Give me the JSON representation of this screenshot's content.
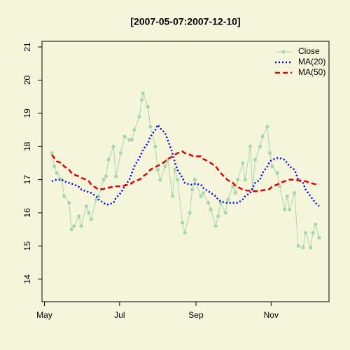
{
  "chart_data": {
    "type": "line",
    "title": "[2007-05-07:2007-12-10]",
    "x": [
      "2007-05-07",
      "2007-05-09",
      "2007-05-11",
      "2007-05-15",
      "2007-05-17",
      "2007-05-21",
      "2007-05-23",
      "2007-05-25",
      "2007-05-29",
      "2007-05-31",
      "2007-06-04",
      "2007-06-06",
      "2007-06-08",
      "2007-06-12",
      "2007-06-14",
      "2007-06-18",
      "2007-06-20",
      "2007-06-22",
      "2007-06-26",
      "2007-06-28",
      "2007-07-02",
      "2007-07-05",
      "2007-07-09",
      "2007-07-11",
      "2007-07-13",
      "2007-07-17",
      "2007-07-19",
      "2007-07-20",
      "2007-07-24",
      "2007-07-26",
      "2007-07-30",
      "2007-08-01",
      "2007-08-03",
      "2007-08-07",
      "2007-08-09",
      "2007-08-13",
      "2007-08-15",
      "2007-08-17",
      "2007-08-21",
      "2007-08-23",
      "2007-08-27",
      "2007-08-29",
      "2007-08-31",
      "2007-09-05",
      "2007-09-07",
      "2007-09-11",
      "2007-09-13",
      "2007-09-17",
      "2007-09-19",
      "2007-09-21",
      "2007-09-25",
      "2007-09-27",
      "2007-10-01",
      "2007-10-03",
      "2007-10-05",
      "2007-10-09",
      "2007-10-11",
      "2007-10-15",
      "2007-10-17",
      "2007-10-19",
      "2007-10-23",
      "2007-10-25",
      "2007-10-29",
      "2007-10-31",
      "2007-11-02",
      "2007-11-06",
      "2007-11-08",
      "2007-11-12",
      "2007-11-14",
      "2007-11-16",
      "2007-11-20",
      "2007-11-23",
      "2007-11-27",
      "2007-11-29",
      "2007-12-03",
      "2007-12-05",
      "2007-12-07",
      "2007-12-10"
    ],
    "series": [
      {
        "name": "Close",
        "color": "#a8d8a8",
        "line_style": "solid",
        "markers": true,
        "values": [
          17.8,
          17.4,
          17.2,
          17.0,
          16.5,
          16.3,
          15.5,
          15.6,
          15.9,
          15.6,
          16.2,
          16.0,
          15.8,
          16.4,
          16.5,
          17.0,
          17.1,
          17.6,
          18.0,
          17.1,
          17.8,
          18.3,
          18.2,
          18.2,
          18.5,
          18.9,
          19.4,
          19.6,
          19.2,
          18.6,
          18.0,
          17.3,
          17.0,
          17.4,
          17.6,
          16.5,
          17.3,
          17.0,
          15.7,
          15.4,
          16.0,
          16.7,
          17.0,
          16.5,
          16.6,
          16.3,
          16.1,
          15.6,
          15.9,
          16.3,
          16.0,
          16.4,
          16.8,
          16.6,
          17.0,
          17.5,
          17.0,
          18.0,
          16.7,
          17.6,
          18.0,
          18.3,
          18.6,
          17.8,
          17.4,
          17.2,
          16.8,
          16.1,
          16.5,
          16.1,
          16.6,
          15.0,
          14.95,
          15.4,
          14.95,
          15.4,
          15.65,
          15.25
        ]
      },
      {
        "name": "MA(20)",
        "color": "#0000ff",
        "line_style": "dotted",
        "markers": false,
        "values": [
          16.95,
          16.98,
          17.0,
          17.0,
          16.95,
          16.9,
          16.88,
          16.85,
          16.78,
          16.7,
          16.65,
          16.62,
          16.6,
          16.5,
          16.4,
          16.3,
          16.25,
          16.25,
          16.3,
          16.45,
          16.6,
          16.8,
          17.0,
          17.2,
          17.4,
          17.65,
          17.8,
          17.9,
          18.1,
          18.3,
          18.5,
          18.65,
          18.55,
          18.4,
          18.2,
          17.8,
          17.5,
          17.3,
          17.05,
          16.9,
          16.85,
          16.85,
          16.87,
          16.85,
          16.75,
          16.65,
          16.6,
          16.5,
          16.4,
          16.35,
          16.3,
          16.3,
          16.3,
          16.3,
          16.3,
          16.4,
          16.5,
          16.6,
          16.75,
          16.9,
          17.0,
          17.2,
          17.4,
          17.55,
          17.6,
          17.65,
          17.65,
          17.6,
          17.5,
          17.4,
          17.3,
          17.0,
          16.9,
          16.7,
          16.5,
          16.4,
          16.3,
          16.2
        ]
      },
      {
        "name": "MA(50)",
        "color": "#e00000",
        "line_style": "dashed",
        "markers": false,
        "values": [
          17.75,
          17.65,
          17.55,
          17.5,
          17.4,
          17.3,
          17.2,
          17.15,
          17.1,
          17.05,
          17.0,
          16.95,
          16.85,
          16.75,
          16.7,
          16.72,
          16.75,
          16.76,
          16.78,
          16.8,
          16.8,
          16.82,
          16.85,
          16.9,
          16.95,
          17.0,
          17.05,
          17.1,
          17.2,
          17.3,
          17.38,
          17.42,
          17.45,
          17.55,
          17.62,
          17.7,
          17.75,
          17.8,
          17.85,
          17.8,
          17.75,
          17.72,
          17.7,
          17.7,
          17.62,
          17.55,
          17.5,
          17.4,
          17.3,
          17.2,
          17.05,
          16.98,
          16.9,
          16.82,
          16.78,
          16.7,
          16.68,
          16.66,
          16.65,
          16.65,
          16.66,
          16.68,
          16.7,
          16.72,
          16.8,
          16.85,
          16.9,
          16.95,
          16.98,
          17.0,
          17.0,
          16.98,
          16.97,
          16.95,
          16.9,
          16.88,
          16.86,
          16.85
        ]
      }
    ],
    "xlim": [
      "2007-04-29",
      "2007-12-18"
    ],
    "xticks": [
      {
        "value": "2007-05-01",
        "label": "May"
      },
      {
        "value": "2007-07-01",
        "label": "Jul"
      },
      {
        "value": "2007-09-01",
        "label": "Sep"
      },
      {
        "value": "2007-11-01",
        "label": "Nov"
      }
    ],
    "ylim": [
      13.32,
      21.17
    ],
    "yticks": [
      14,
      15,
      16,
      17,
      18,
      19,
      20,
      21
    ],
    "grid": false,
    "legend": "topright"
  }
}
